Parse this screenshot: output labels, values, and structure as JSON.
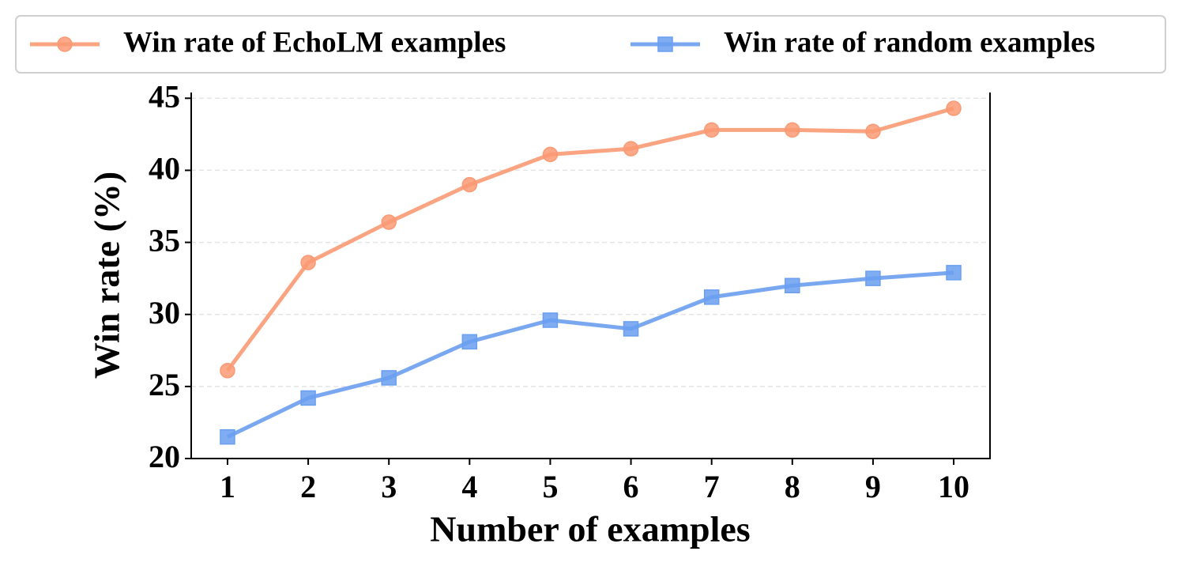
{
  "chart_data": {
    "type": "line",
    "xlabel": "Number of examples",
    "ylabel": "Win rate (%)",
    "x": [
      1,
      2,
      3,
      4,
      5,
      6,
      7,
      8,
      9,
      10
    ],
    "series": [
      {
        "name": "Win rate of EchoLM examples",
        "color": "#fa9a74",
        "marker": "circle",
        "values": [
          26.1,
          33.6,
          36.4,
          39.0,
          41.1,
          41.5,
          42.8,
          42.8,
          42.7,
          44.3
        ]
      },
      {
        "name": "Win rate of random examples",
        "color": "#6a9ff0",
        "marker": "square",
        "values": [
          21.5,
          24.2,
          25.6,
          28.1,
          29.6,
          29.0,
          31.2,
          32.0,
          32.5,
          32.9
        ]
      }
    ],
    "xlim": [
      0.55,
      10.45
    ],
    "xticks": [
      1,
      2,
      3,
      4,
      5,
      6,
      7,
      8,
      9,
      10
    ],
    "ylim": [
      20,
      45.4
    ],
    "yticks": [
      20,
      25,
      30,
      35,
      40,
      45
    ],
    "grid": true,
    "legend": "top"
  }
}
